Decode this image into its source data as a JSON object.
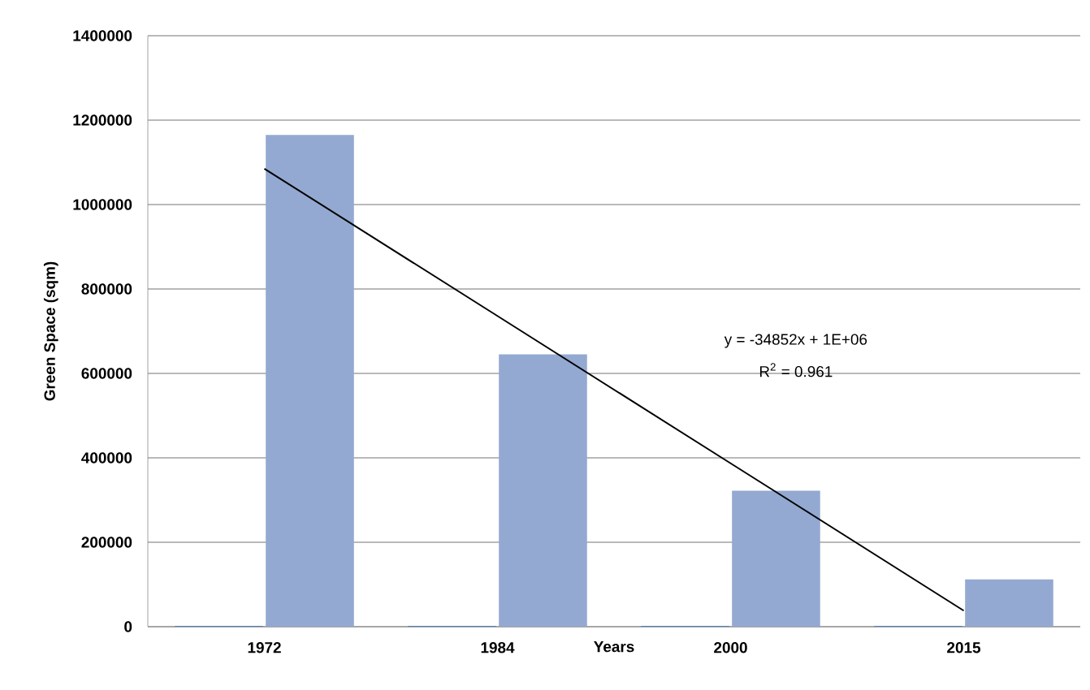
{
  "chart_data": {
    "type": "bar",
    "xlabel": "Years",
    "ylabel": "Green Space (sqm)",
    "categories": [
      "1972",
      "1984",
      "2000",
      "2015"
    ],
    "series": [
      {
        "color": "#4f81bd",
        "values": [
          1972,
          1984,
          2000,
          2015
        ]
      },
      {
        "color": "#93a9d1",
        "values": [
          1165000,
          645000,
          322000,
          112000
        ]
      },
      {
        "type": "line",
        "color": "#000000",
        "values": [
          1085000,
          736000,
          387000,
          38000
        ]
      }
    ],
    "ylim": [
      0,
      1400000
    ],
    "yticks": [
      0,
      200000,
      400000,
      600000,
      800000,
      1000000,
      1200000,
      1400000
    ],
    "grid": "y",
    "marker": "none",
    "annotations": [
      "y = -34852x + 1E+06",
      "R$^{2}$ = 0.961"
    ]
  }
}
